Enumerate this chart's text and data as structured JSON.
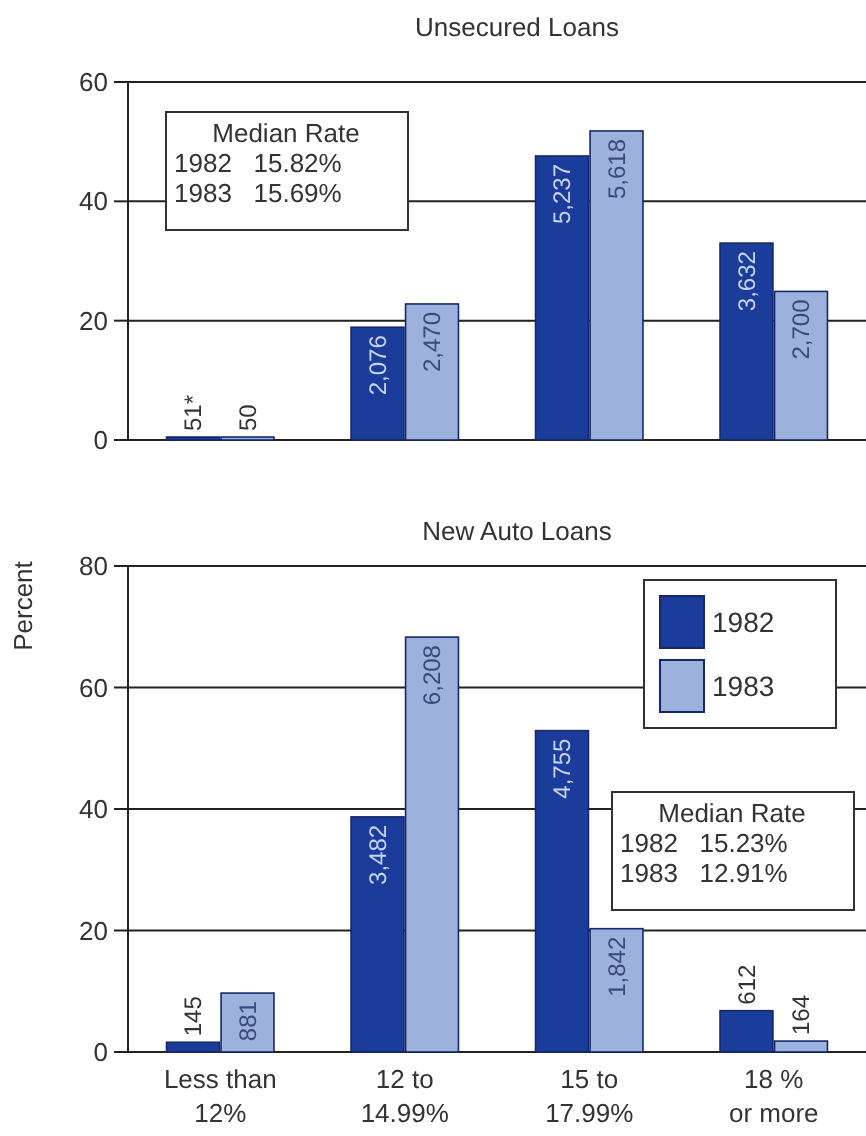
{
  "chart_data": [
    {
      "type": "bar",
      "title": "Unsecured Loans",
      "categories": [
        "Less than 12%",
        "12 to 14.99%",
        "15 to 17.99%",
        "18 % or more"
      ],
      "series": [
        {
          "color": "#1c3c9c",
          "values": [
            0.5,
            18.9,
            47.6,
            33.0
          ]
        },
        {
          "color": "#9db1dd",
          "values": [
            0.5,
            22.8,
            51.8,
            24.9
          ]
        }
      ],
      "ylim": [
        0,
        60
      ],
      "yticks": [
        0,
        20,
        40,
        60
      ],
      "grid": "y",
      "tick_labels": "y",
      "legend": false,
      "annotations": [
        "Median Rate",
        "1982   15.82%",
        "1983   15.69%",
        {
          "text": "51*",
          "x": "Less than 12%",
          "y": 0.5
        },
        {
          "text": "50",
          "x": "Less than 12%",
          "y": 0.5
        },
        {
          "text": "2,076",
          "x": "12 to 14.99%",
          "y": 18.9
        },
        {
          "text": "2,470",
          "x": "12 to 14.99%",
          "y": 22.8
        },
        {
          "text": "5,237",
          "x": "15 to 17.99%",
          "y": 47.6
        },
        {
          "text": "5,618",
          "x": "15 to 17.99%",
          "y": 51.8
        },
        {
          "text": "3,632",
          "x": "18 % or more",
          "y": 33.0
        },
        {
          "text": "2,700",
          "x": "18 % or more",
          "y": 24.9
        }
      ]
    },
    {
      "type": "bar",
      "title": "New Auto Loans",
      "ylabel": "Percent",
      "categories": [
        "Less than 12%",
        "12 to 14.99%",
        "15 to 17.99%",
        "18 % or more"
      ],
      "series": [
        {
          "name": "1982",
          "color": "#1c3c9c",
          "values": [
            1.6,
            38.7,
            52.9,
            6.8
          ]
        },
        {
          "name": "1983",
          "color": "#9db1dd",
          "values": [
            9.7,
            68.3,
            20.3,
            1.8
          ]
        }
      ],
      "ylim": [
        0,
        80
      ],
      "yticks": [
        0,
        20,
        40,
        60,
        80
      ],
      "grid": "y",
      "legend": "top right",
      "annotations": [
        "Median Rate",
        "1982   15.23%",
        "1983   12.91%",
        {
          "text": "145",
          "x": "Less than 12%",
          "y": 1.6
        },
        {
          "text": "881",
          "x": "Less than 12%",
          "y": 9.7
        },
        {
          "text": "3,482",
          "x": "12 to 14.99%",
          "y": 38.7
        },
        {
          "text": "6,208",
          "x": "12 to 14.99%",
          "y": 68.3
        },
        {
          "text": "4,755",
          "x": "15 to 17.99%",
          "y": 52.9
        },
        {
          "text": "1,842",
          "x": "15 to 17.99%",
          "y": 20.3
        },
        {
          "text": "612",
          "x": "18 % or more",
          "y": 6.8
        },
        {
          "text": "164",
          "x": "18 % or more",
          "y": 1.8
        }
      ]
    }
  ]
}
